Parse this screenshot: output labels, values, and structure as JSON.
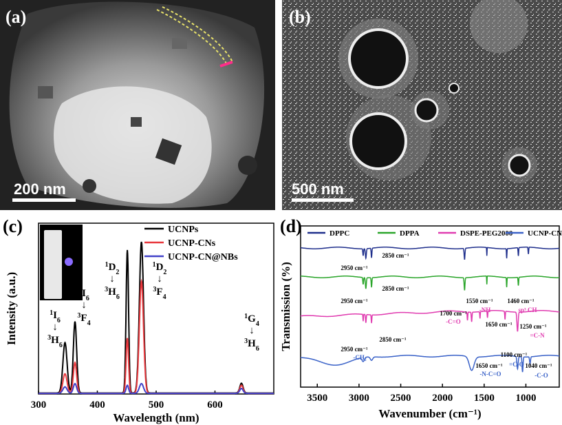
{
  "panels": {
    "a": {
      "label": "(a)",
      "scale": "200 nm"
    },
    "b": {
      "label": "(b)",
      "scale": "500 nm"
    },
    "c": {
      "label": "(c)"
    },
    "d": {
      "label": "(d)"
    }
  },
  "chart_data": [
    {
      "type": "line",
      "xlabel": "Wavelength (nm)",
      "ylabel": "Intensity (a.u.)",
      "xlim": [
        300,
        700
      ],
      "xticks": [
        300,
        400,
        500,
        600
      ],
      "legend_position": "top-right",
      "series": [
        {
          "name": "UCNPs",
          "color": "#000000",
          "peaks": [
            [
              345,
              0.31
            ],
            [
              362,
              0.44
            ],
            [
              451,
              0.88
            ],
            [
              475,
              0.93
            ],
            [
              645,
              0.06
            ]
          ]
        },
        {
          "name": "UCNP-CNs",
          "color": "#e8383d",
          "peaks": [
            [
              345,
              0.12
            ],
            [
              362,
              0.19
            ],
            [
              451,
              0.34
            ],
            [
              475,
              0.69
            ],
            [
              645,
              0.05
            ]
          ]
        },
        {
          "name": "UCNP-CN@NBs",
          "color": "#4040c8",
          "peaks": [
            [
              345,
              0.04
            ],
            [
              362,
              0.06
            ],
            [
              451,
              0.05
            ],
            [
              475,
              0.06
            ],
            [
              645,
              0.03
            ]
          ]
        }
      ],
      "annotations": [
        {
          "upper": "1I6",
          "lower": "3H6"
        },
        {
          "upper": "1I6",
          "lower": "3F4"
        },
        {
          "upper": "1D2",
          "lower": "3H6"
        },
        {
          "upper": "1D2",
          "lower": "3F4"
        },
        {
          "upper": "1G4",
          "lower": "3H6"
        }
      ]
    },
    {
      "type": "line",
      "xlabel": "Wavenumber (cm⁻¹)",
      "ylabel": "Transmission (%)",
      "xlim": [
        3700,
        600
      ],
      "xticks": [
        3500,
        3000,
        2500,
        2000,
        1500,
        1000
      ],
      "legend_position": "top",
      "series": [
        {
          "name": "DPPC",
          "color": "#1f2f8c"
        },
        {
          "name": "DPPA",
          "color": "#2aa52a"
        },
        {
          "name": "DSPE-PEG2000",
          "color": "#e03cb0"
        },
        {
          "name": "UCNP-CN@NBs",
          "color": "#3a62c8"
        }
      ],
      "peak_labels": [
        {
          "text": "2950 cm⁻¹",
          "color": "#000"
        },
        {
          "text": "2850 cm⁻¹",
          "color": "#000"
        },
        {
          "text": "2950 cm⁻¹",
          "color": "#000"
        },
        {
          "text": "2850 cm⁻¹",
          "color": "#000"
        },
        {
          "text": "1550 cm⁻¹",
          "color": "#000"
        },
        {
          "text": "-NH",
          "color": "#e03cb0"
        },
        {
          "text": "1460 cm⁻¹",
          "color": "#000"
        },
        {
          "text": "sp³ CH",
          "color": "#e03cb0"
        },
        {
          "text": "1700 cm⁻¹",
          "color": "#000"
        },
        {
          "text": "-C=O",
          "color": "#e03cb0"
        },
        {
          "text": "1650 cm⁻¹",
          "color": "#000"
        },
        {
          "text": "1250 cm⁻¹",
          "color": "#000"
        },
        {
          "text": "=C-N",
          "color": "#e03cb0"
        },
        {
          "text": "2950 cm⁻¹",
          "color": "#000"
        },
        {
          "text": "2850 cm⁻¹",
          "color": "#000"
        },
        {
          "text": "-CH₂",
          "color": "#3a62c8"
        },
        {
          "text": "1650 cm⁻¹",
          "color": "#000"
        },
        {
          "text": "-N-C=O",
          "color": "#3a62c8"
        },
        {
          "text": "1100 cm⁻¹",
          "color": "#000"
        },
        {
          "text": "=C-O",
          "color": "#3a62c8"
        },
        {
          "text": "1040 cm⁻¹",
          "color": "#000"
        },
        {
          "text": "-C-O",
          "color": "#3a62c8"
        }
      ]
    }
  ]
}
